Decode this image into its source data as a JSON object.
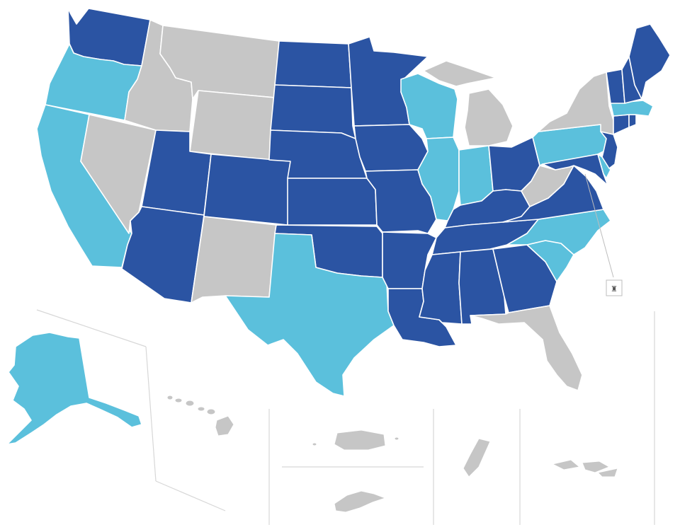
{
  "map": {
    "colors": {
      "dark": "#2b54a3",
      "light": "#5bc0dc",
      "gray": "#c6c6c6"
    },
    "dc_marker_symbol": "♜",
    "states": {
      "WA": "dark",
      "OR": "light",
      "CA": "light",
      "ID": "gray",
      "NV": "gray",
      "MT": "gray",
      "WY": "gray",
      "UT": "dark",
      "AZ": "dark",
      "CO": "dark",
      "NM": "gray",
      "ND": "dark",
      "SD": "dark",
      "NE": "dark",
      "KS": "dark",
      "OK": "dark",
      "TX": "light",
      "MN": "dark",
      "IA": "dark",
      "MO": "dark",
      "AR": "dark",
      "LA": "dark",
      "WI": "light",
      "IL": "light",
      "MI": "gray",
      "IN": "light",
      "OH": "dark",
      "KY": "dark",
      "TN": "dark",
      "MS": "dark",
      "AL": "dark",
      "GA": "dark",
      "FL": "gray",
      "SC": "light",
      "NC": "light",
      "VA": "dark",
      "WV": "gray",
      "MD": "dark",
      "DE": "light",
      "NJ": "dark",
      "PA": "light",
      "NY": "gray",
      "CT": "dark",
      "RI": "dark",
      "MA": "light",
      "VT": "dark",
      "NH": "dark",
      "ME": "dark",
      "AK": "light",
      "HI": "gray",
      "PR": "gray",
      "GU": "gray",
      "VI": "gray",
      "AS": "gray"
    }
  }
}
